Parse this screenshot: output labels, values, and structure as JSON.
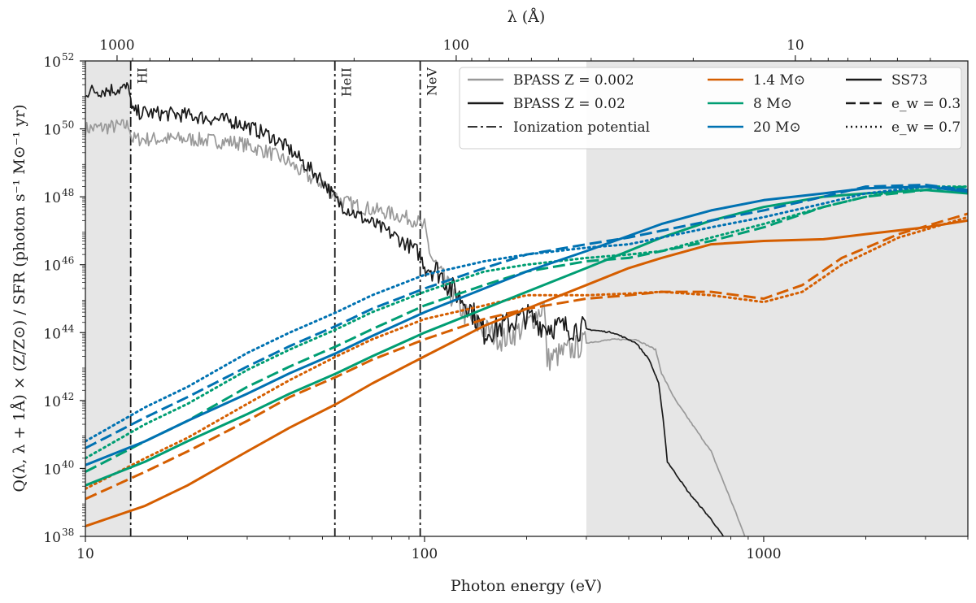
{
  "chart_data": {
    "type": "line",
    "x_scale": "log",
    "y_scale": "log",
    "xlabel": "Photon energy (eV)",
    "ylabel": "Q(λ, λ + 1Å) × (Z/Z⊙) / SFR (photon s⁻¹ M⊙⁻¹ yr)",
    "top_xlabel": "λ (Å)",
    "xlim": [
      10,
      4000
    ],
    "ylim": [
      1e+38,
      1e+52
    ],
    "x_ticks": [
      {
        "value": 10,
        "label": "10"
      },
      {
        "value": 100,
        "label": "100"
      },
      {
        "value": 1000,
        "label": "1000"
      }
    ],
    "y_ticks": [
      {
        "exp": 38,
        "label": "10",
        "sup": "38"
      },
      {
        "exp": 40,
        "label": "10",
        "sup": "40"
      },
      {
        "exp": 42,
        "label": "10",
        "sup": "42"
      },
      {
        "exp": 44,
        "label": "10",
        "sup": "44"
      },
      {
        "exp": 46,
        "label": "10",
        "sup": "46"
      },
      {
        "exp": 48,
        "label": "10",
        "sup": "48"
      },
      {
        "exp": 50,
        "label": "10",
        "sup": "50"
      },
      {
        "exp": 52,
        "label": "10",
        "sup": "52"
      }
    ],
    "top_ticks": [
      {
        "value_angstrom": 1000,
        "label": "1000"
      },
      {
        "value_angstrom": 100,
        "label": "100"
      },
      {
        "value_angstrom": 10,
        "label": "10"
      }
    ],
    "shaded_regions_ev": [
      [
        10,
        13.6
      ],
      [
        300,
        4000
      ]
    ],
    "ionization_potentials": [
      {
        "name": "HI",
        "energy_ev": 13.6
      },
      {
        "name": "HeII",
        "energy_ev": 54.4
      },
      {
        "name": "NeV",
        "energy_ev": 97.1
      }
    ],
    "colors": {
      "bpass_low_z": "#999999",
      "bpass_high_z": "#1a1a1a",
      "m1_4": "#d55e00",
      "m8": "#009e73",
      "m20": "#0072b2",
      "ss73": "#1a1a1a"
    },
    "legend": {
      "position": "top-right",
      "entries": [
        {
          "label": "BPASS Z = 0.002",
          "color": "#999999",
          "dash": "solid"
        },
        {
          "label": "BPASS Z = 0.02",
          "color": "#1a1a1a",
          "dash": "solid"
        },
        {
          "label": "Ionization potential",
          "color": "#1a1a1a",
          "dash": "dashdot"
        },
        {
          "label": "1.4 M⊙",
          "color": "#d55e00",
          "dash": "solid"
        },
        {
          "label": "8 M⊙",
          "color": "#009e73",
          "dash": "solid"
        },
        {
          "label": "20 M⊙",
          "color": "#0072b2",
          "dash": "solid"
        },
        {
          "label": "SS73",
          "color": "#1a1a1a",
          "dash": "solid"
        },
        {
          "label": "e_w = 0.3",
          "color": "#1a1a1a",
          "dash": "dashed"
        },
        {
          "label": "e_w = 0.7",
          "color": "#1a1a1a",
          "dash": "dotted"
        }
      ]
    },
    "series": [
      {
        "name": "BPASS Z = 0.002",
        "color": "#999999",
        "dash": "solid",
        "noisy": true,
        "points": [
          [
            10,
            50.0
          ],
          [
            13.5,
            50.1
          ],
          [
            13.7,
            49.7
          ],
          [
            20,
            49.7
          ],
          [
            28,
            49.6
          ],
          [
            35,
            49.3
          ],
          [
            40,
            49.0
          ],
          [
            45,
            48.6
          ],
          [
            50,
            48.4
          ],
          [
            54,
            48.1
          ],
          [
            56,
            47.9
          ],
          [
            65,
            47.7
          ],
          [
            80,
            47.5
          ],
          [
            95,
            47.3
          ],
          [
            100,
            47.0
          ],
          [
            105,
            46.2
          ],
          [
            110,
            45.8
          ],
          [
            120,
            45.1
          ],
          [
            135,
            44.4
          ],
          [
            150,
            44.1
          ],
          [
            170,
            43.8
          ],
          [
            200,
            44.2
          ],
          [
            225,
            44.8
          ],
          [
            230,
            43.2
          ],
          [
            300,
            43.7
          ],
          [
            360,
            43.8
          ],
          [
            420,
            43.8
          ],
          [
            480,
            43.5
          ],
          [
            500,
            42.8
          ],
          [
            550,
            42.0
          ],
          [
            700,
            40.5
          ],
          [
            820,
            38.8
          ],
          [
            880,
            38.0
          ]
        ]
      },
      {
        "name": "BPASS Z = 0.02",
        "color": "#1a1a1a",
        "dash": "solid",
        "noisy": true,
        "points": [
          [
            10,
            51.1
          ],
          [
            13.5,
            51.2
          ],
          [
            13.7,
            50.5
          ],
          [
            20,
            50.4
          ],
          [
            28,
            50.2
          ],
          [
            35,
            49.8
          ],
          [
            40,
            49.4
          ],
          [
            45,
            48.9
          ],
          [
            50,
            48.5
          ],
          [
            54,
            48.0
          ],
          [
            56,
            47.8
          ],
          [
            65,
            47.4
          ],
          [
            80,
            46.9
          ],
          [
            95,
            46.4
          ],
          [
            100,
            46.0
          ],
          [
            110,
            45.8
          ],
          [
            120,
            45.3
          ],
          [
            135,
            44.8
          ],
          [
            150,
            44.0
          ],
          [
            170,
            44.2
          ],
          [
            200,
            44.5
          ],
          [
            225,
            44.2
          ],
          [
            230,
            44.2
          ],
          [
            300,
            44.1
          ],
          [
            360,
            44.0
          ],
          [
            420,
            43.7
          ],
          [
            460,
            43.2
          ],
          [
            490,
            42.5
          ],
          [
            505,
            41.5
          ],
          [
            520,
            40.2
          ],
          [
            600,
            39.3
          ],
          [
            700,
            38.5
          ],
          [
            760,
            38.0
          ]
        ]
      },
      {
        "name": "1.4 M⊙ SS73",
        "color": "#d55e00",
        "dash": "solid",
        "points": [
          [
            10,
            38.3
          ],
          [
            15,
            38.9
          ],
          [
            20,
            39.5
          ],
          [
            30,
            40.5
          ],
          [
            40,
            41.2
          ],
          [
            55,
            41.9
          ],
          [
            70,
            42.5
          ],
          [
            100,
            43.3
          ],
          [
            150,
            44.2
          ],
          [
            200,
            44.7
          ],
          [
            300,
            45.4
          ],
          [
            400,
            45.9
          ],
          [
            500,
            46.2
          ],
          [
            700,
            46.6
          ],
          [
            1000,
            46.7
          ],
          [
            1500,
            46.75
          ],
          [
            2000,
            46.9
          ],
          [
            3000,
            47.1
          ],
          [
            4000,
            47.3
          ]
        ]
      },
      {
        "name": "1.4 M⊙ e_w = 0.3",
        "color": "#d55e00",
        "dash": "dashed",
        "points": [
          [
            10,
            39.1
          ],
          [
            15,
            39.9
          ],
          [
            20,
            40.5
          ],
          [
            30,
            41.4
          ],
          [
            40,
            42.1
          ],
          [
            55,
            42.7
          ],
          [
            70,
            43.2
          ],
          [
            100,
            43.8
          ],
          [
            150,
            44.4
          ],
          [
            200,
            44.7
          ],
          [
            300,
            45.0
          ],
          [
            400,
            45.1
          ],
          [
            500,
            45.2
          ],
          [
            700,
            45.2
          ],
          [
            1000,
            45.0
          ],
          [
            1300,
            45.4
          ],
          [
            1700,
            46.2
          ],
          [
            2500,
            46.9
          ],
          [
            4000,
            47.5
          ]
        ]
      },
      {
        "name": "1.4 M⊙ e_w = 0.7",
        "color": "#d55e00",
        "dash": "dotted",
        "points": [
          [
            10,
            39.4
          ],
          [
            15,
            40.3
          ],
          [
            20,
            40.9
          ],
          [
            30,
            41.9
          ],
          [
            40,
            42.6
          ],
          [
            55,
            43.3
          ],
          [
            70,
            43.8
          ],
          [
            100,
            44.4
          ],
          [
            150,
            44.8
          ],
          [
            200,
            45.1
          ],
          [
            300,
            45.1
          ],
          [
            400,
            45.15
          ],
          [
            500,
            45.2
          ],
          [
            700,
            45.1
          ],
          [
            1000,
            44.9
          ],
          [
            1300,
            45.2
          ],
          [
            1700,
            46.0
          ],
          [
            2500,
            46.8
          ],
          [
            4000,
            47.4
          ]
        ]
      },
      {
        "name": "8 M⊙ SS73",
        "color": "#009e73",
        "dash": "solid",
        "points": [
          [
            10,
            39.5
          ],
          [
            15,
            40.2
          ],
          [
            20,
            40.8
          ],
          [
            30,
            41.6
          ],
          [
            40,
            42.2
          ],
          [
            55,
            42.8
          ],
          [
            70,
            43.3
          ],
          [
            100,
            44.0
          ],
          [
            150,
            44.7
          ],
          [
            200,
            45.2
          ],
          [
            300,
            45.9
          ],
          [
            500,
            46.8
          ],
          [
            700,
            47.3
          ],
          [
            1000,
            47.7
          ],
          [
            1500,
            48.0
          ],
          [
            2000,
            48.1
          ],
          [
            3000,
            48.2
          ],
          [
            4000,
            48.1
          ]
        ]
      },
      {
        "name": "8 M⊙ e_w = 0.3",
        "color": "#009e73",
        "dash": "dashed",
        "points": [
          [
            10,
            39.9
          ],
          [
            15,
            40.8
          ],
          [
            20,
            41.4
          ],
          [
            30,
            42.4
          ],
          [
            40,
            43.0
          ],
          [
            55,
            43.6
          ],
          [
            70,
            44.1
          ],
          [
            100,
            44.8
          ],
          [
            150,
            45.4
          ],
          [
            200,
            45.8
          ],
          [
            300,
            46.1
          ],
          [
            400,
            46.2
          ],
          [
            500,
            46.4
          ],
          [
            700,
            46.7
          ],
          [
            1000,
            47.1
          ],
          [
            1500,
            47.7
          ],
          [
            2000,
            48.0
          ],
          [
            3000,
            48.2
          ],
          [
            4000,
            48.3
          ]
        ]
      },
      {
        "name": "8 M⊙ e_w = 0.7",
        "color": "#009e73",
        "dash": "dotted",
        "points": [
          [
            10,
            40.3
          ],
          [
            15,
            41.3
          ],
          [
            20,
            41.9
          ],
          [
            30,
            42.9
          ],
          [
            40,
            43.5
          ],
          [
            55,
            44.1
          ],
          [
            70,
            44.6
          ],
          [
            100,
            45.2
          ],
          [
            150,
            45.8
          ],
          [
            200,
            46.0
          ],
          [
            300,
            46.2
          ],
          [
            400,
            46.3
          ],
          [
            500,
            46.4
          ],
          [
            700,
            46.8
          ],
          [
            1000,
            47.2
          ],
          [
            1500,
            47.7
          ],
          [
            2000,
            48.0
          ],
          [
            3000,
            48.3
          ],
          [
            4000,
            48.3
          ]
        ]
      },
      {
        "name": "20 M⊙ SS73",
        "color": "#0072b2",
        "dash": "solid",
        "points": [
          [
            10,
            40.1
          ],
          [
            15,
            40.8
          ],
          [
            20,
            41.4
          ],
          [
            30,
            42.2
          ],
          [
            40,
            42.8
          ],
          [
            55,
            43.4
          ],
          [
            70,
            43.9
          ],
          [
            100,
            44.6
          ],
          [
            150,
            45.3
          ],
          [
            200,
            45.8
          ],
          [
            300,
            46.4
          ],
          [
            500,
            47.2
          ],
          [
            700,
            47.6
          ],
          [
            1000,
            47.9
          ],
          [
            1500,
            48.1
          ],
          [
            2000,
            48.25
          ],
          [
            3000,
            48.3
          ],
          [
            4000,
            48.15
          ]
        ]
      },
      {
        "name": "20 M⊙ e_w = 0.3",
        "color": "#0072b2",
        "dash": "dashed",
        "points": [
          [
            10,
            40.6
          ],
          [
            15,
            41.5
          ],
          [
            20,
            42.1
          ],
          [
            30,
            43.0
          ],
          [
            40,
            43.6
          ],
          [
            55,
            44.2
          ],
          [
            70,
            44.7
          ],
          [
            100,
            45.3
          ],
          [
            150,
            45.9
          ],
          [
            200,
            46.3
          ],
          [
            300,
            46.6
          ],
          [
            400,
            46.8
          ],
          [
            500,
            47.0
          ],
          [
            700,
            47.3
          ],
          [
            1000,
            47.6
          ],
          [
            1500,
            48.0
          ],
          [
            2000,
            48.3
          ],
          [
            3000,
            48.35
          ],
          [
            4000,
            48.2
          ]
        ]
      },
      {
        "name": "20 M⊙ e_w = 0.7",
        "color": "#0072b2",
        "dash": "dotted",
        "points": [
          [
            10,
            40.8
          ],
          [
            15,
            41.8
          ],
          [
            20,
            42.4
          ],
          [
            30,
            43.4
          ],
          [
            40,
            44.0
          ],
          [
            55,
            44.6
          ],
          [
            70,
            45.1
          ],
          [
            100,
            45.7
          ],
          [
            150,
            46.1
          ],
          [
            200,
            46.3
          ],
          [
            300,
            46.5
          ],
          [
            400,
            46.6
          ],
          [
            500,
            46.8
          ],
          [
            700,
            47.1
          ],
          [
            1000,
            47.4
          ],
          [
            1500,
            47.8
          ],
          [
            2000,
            48.1
          ],
          [
            3000,
            48.3
          ],
          [
            4000,
            48.2
          ]
        ]
      }
    ]
  }
}
